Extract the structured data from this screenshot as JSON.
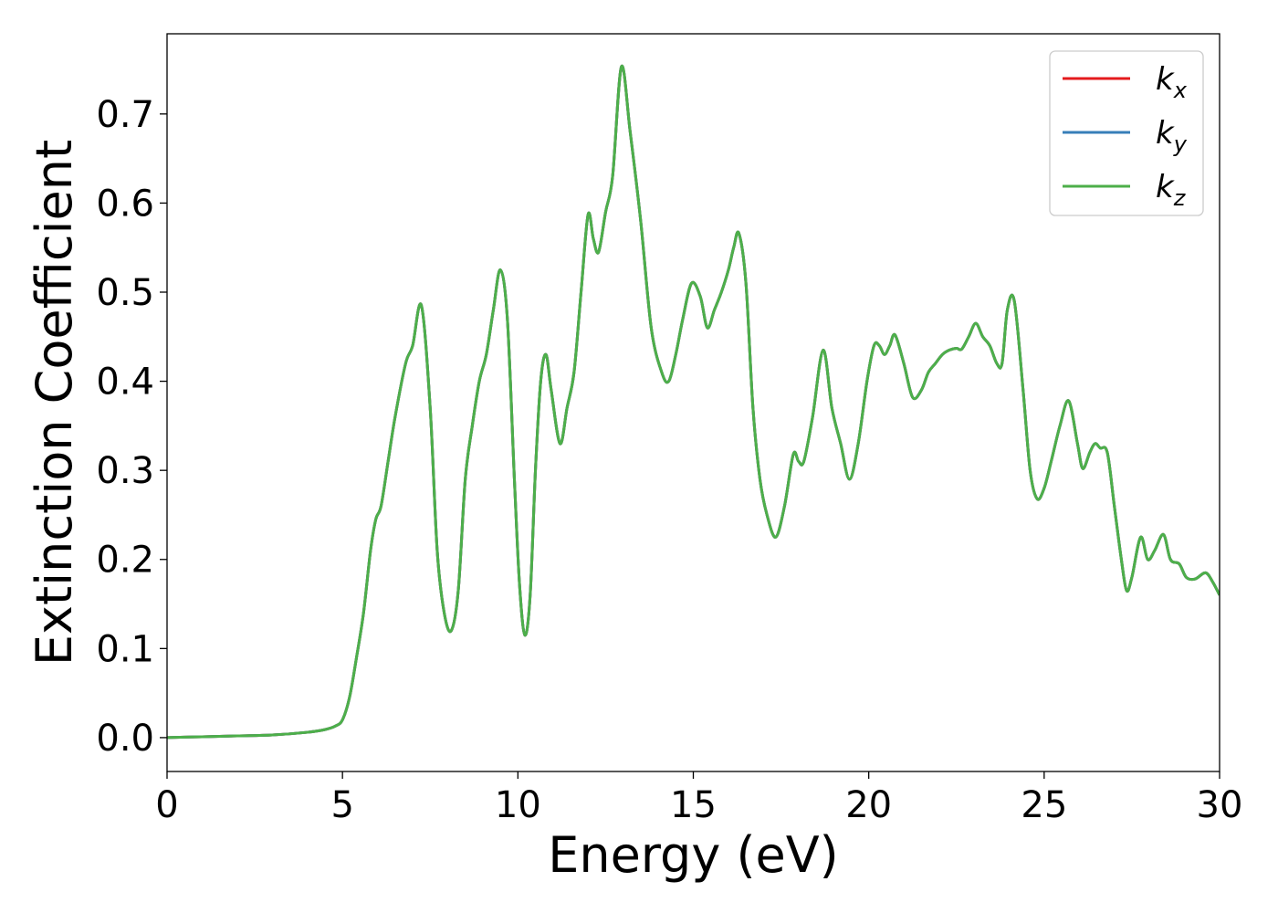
{
  "chart_data": {
    "type": "line",
    "title": "",
    "xlabel": "Energy (eV)",
    "ylabel": "Extinction Coefficient",
    "xlim": [
      0,
      30
    ],
    "ylim": [
      -0.038,
      0.79
    ],
    "grid": false,
    "legend_position": "top-right",
    "x_ticks": [
      0,
      5,
      10,
      15,
      20,
      25,
      30
    ],
    "x_tick_labels": [
      "0",
      "5",
      "10",
      "15",
      "20",
      "25",
      "30"
    ],
    "y_ticks": [
      0.0,
      0.1,
      0.2,
      0.3,
      0.4,
      0.5,
      0.6,
      0.7
    ],
    "y_tick_labels": [
      "0.0",
      "0.1",
      "0.2",
      "0.3",
      "0.4",
      "0.5",
      "0.6",
      "0.7"
    ],
    "x": [
      0,
      1,
      2,
      3,
      4,
      4.5,
      4.8,
      5.0,
      5.2,
      5.4,
      5.6,
      5.8,
      5.95,
      6.1,
      6.3,
      6.5,
      6.8,
      7.0,
      7.25,
      7.5,
      7.7,
      7.9,
      8.1,
      8.3,
      8.5,
      8.7,
      8.9,
      9.1,
      9.3,
      9.5,
      9.7,
      9.9,
      10.05,
      10.2,
      10.35,
      10.5,
      10.65,
      10.8,
      10.95,
      11.2,
      11.4,
      11.6,
      11.8,
      12.0,
      12.15,
      12.3,
      12.5,
      12.7,
      12.95,
      13.2,
      13.5,
      13.8,
      14.1,
      14.3,
      14.5,
      14.7,
      14.95,
      15.2,
      15.4,
      15.6,
      15.8,
      16.0,
      16.15,
      16.3,
      16.5,
      16.7,
      16.9,
      17.1,
      17.35,
      17.6,
      17.85,
      18.0,
      18.15,
      18.4,
      18.7,
      18.95,
      19.2,
      19.45,
      19.7,
      19.95,
      20.15,
      20.3,
      20.45,
      20.6,
      20.75,
      21.0,
      21.25,
      21.5,
      21.7,
      21.9,
      22.1,
      22.3,
      22.5,
      22.65,
      22.85,
      23.05,
      23.25,
      23.45,
      23.65,
      23.8,
      23.95,
      24.15,
      24.4,
      24.6,
      24.8,
      25.0,
      25.2,
      25.45,
      25.7,
      25.95,
      26.1,
      26.3,
      26.45,
      26.6,
      26.8,
      27.0,
      27.2,
      27.35,
      27.5,
      27.75,
      27.95,
      28.15,
      28.4,
      28.6,
      28.85,
      29.05,
      29.3,
      29.6,
      29.8,
      30.0
    ],
    "series": [
      {
        "name": "k_x",
        "color": "#e41a1c",
        "values": [
          0.0,
          0.001,
          0.002,
          0.003,
          0.006,
          0.009,
          0.013,
          0.02,
          0.045,
          0.09,
          0.14,
          0.21,
          0.245,
          0.26,
          0.31,
          0.36,
          0.42,
          0.44,
          0.485,
          0.37,
          0.21,
          0.14,
          0.12,
          0.165,
          0.29,
          0.35,
          0.4,
          0.43,
          0.48,
          0.525,
          0.47,
          0.29,
          0.17,
          0.115,
          0.16,
          0.3,
          0.4,
          0.43,
          0.39,
          0.33,
          0.37,
          0.41,
          0.5,
          0.587,
          0.56,
          0.545,
          0.59,
          0.63,
          0.753,
          0.68,
          0.58,
          0.46,
          0.41,
          0.4,
          0.43,
          0.47,
          0.51,
          0.495,
          0.46,
          0.48,
          0.5,
          0.525,
          0.55,
          0.566,
          0.51,
          0.37,
          0.29,
          0.25,
          0.225,
          0.26,
          0.318,
          0.31,
          0.31,
          0.36,
          0.435,
          0.37,
          0.33,
          0.29,
          0.33,
          0.4,
          0.44,
          0.44,
          0.43,
          0.44,
          0.452,
          0.42,
          0.382,
          0.39,
          0.41,
          0.42,
          0.43,
          0.435,
          0.437,
          0.436,
          0.45,
          0.465,
          0.45,
          0.44,
          0.42,
          0.42,
          0.48,
          0.49,
          0.39,
          0.3,
          0.268,
          0.28,
          0.31,
          0.35,
          0.378,
          0.33,
          0.302,
          0.32,
          0.33,
          0.325,
          0.32,
          0.26,
          0.2,
          0.165,
          0.18,
          0.225,
          0.2,
          0.21,
          0.228,
          0.2,
          0.195,
          0.18,
          0.178,
          0.185,
          0.175,
          0.16
        ]
      },
      {
        "name": "k_y",
        "color": "#377eb8",
        "values": [
          0.0,
          0.001,
          0.002,
          0.003,
          0.006,
          0.009,
          0.013,
          0.02,
          0.045,
          0.09,
          0.14,
          0.21,
          0.245,
          0.26,
          0.31,
          0.36,
          0.42,
          0.44,
          0.485,
          0.37,
          0.21,
          0.14,
          0.12,
          0.165,
          0.29,
          0.35,
          0.4,
          0.43,
          0.48,
          0.525,
          0.47,
          0.29,
          0.17,
          0.115,
          0.16,
          0.3,
          0.4,
          0.43,
          0.39,
          0.33,
          0.37,
          0.41,
          0.5,
          0.587,
          0.56,
          0.545,
          0.59,
          0.63,
          0.753,
          0.68,
          0.58,
          0.46,
          0.41,
          0.4,
          0.43,
          0.47,
          0.51,
          0.495,
          0.46,
          0.48,
          0.5,
          0.525,
          0.55,
          0.566,
          0.51,
          0.37,
          0.29,
          0.25,
          0.225,
          0.26,
          0.318,
          0.31,
          0.31,
          0.36,
          0.435,
          0.37,
          0.33,
          0.29,
          0.33,
          0.4,
          0.44,
          0.44,
          0.43,
          0.44,
          0.452,
          0.42,
          0.382,
          0.39,
          0.41,
          0.42,
          0.43,
          0.435,
          0.437,
          0.436,
          0.45,
          0.465,
          0.45,
          0.44,
          0.42,
          0.42,
          0.48,
          0.49,
          0.39,
          0.3,
          0.268,
          0.28,
          0.31,
          0.35,
          0.378,
          0.33,
          0.302,
          0.32,
          0.33,
          0.325,
          0.32,
          0.26,
          0.2,
          0.165,
          0.18,
          0.225,
          0.2,
          0.21,
          0.228,
          0.2,
          0.195,
          0.18,
          0.178,
          0.185,
          0.175,
          0.16
        ]
      },
      {
        "name": "k_z",
        "color": "#4daf4a",
        "values": [
          0.0,
          0.001,
          0.002,
          0.003,
          0.006,
          0.009,
          0.013,
          0.02,
          0.045,
          0.09,
          0.14,
          0.21,
          0.245,
          0.26,
          0.31,
          0.36,
          0.42,
          0.44,
          0.485,
          0.37,
          0.21,
          0.14,
          0.12,
          0.165,
          0.29,
          0.35,
          0.4,
          0.43,
          0.48,
          0.525,
          0.47,
          0.29,
          0.17,
          0.115,
          0.16,
          0.3,
          0.4,
          0.43,
          0.39,
          0.33,
          0.37,
          0.41,
          0.5,
          0.587,
          0.56,
          0.545,
          0.59,
          0.63,
          0.753,
          0.68,
          0.58,
          0.46,
          0.41,
          0.4,
          0.43,
          0.47,
          0.51,
          0.495,
          0.46,
          0.48,
          0.5,
          0.525,
          0.55,
          0.566,
          0.51,
          0.37,
          0.29,
          0.25,
          0.225,
          0.26,
          0.318,
          0.31,
          0.31,
          0.36,
          0.435,
          0.37,
          0.33,
          0.29,
          0.33,
          0.4,
          0.44,
          0.44,
          0.43,
          0.44,
          0.452,
          0.42,
          0.382,
          0.39,
          0.41,
          0.42,
          0.43,
          0.435,
          0.437,
          0.436,
          0.45,
          0.465,
          0.45,
          0.44,
          0.42,
          0.42,
          0.48,
          0.49,
          0.39,
          0.3,
          0.268,
          0.28,
          0.31,
          0.35,
          0.378,
          0.33,
          0.302,
          0.32,
          0.33,
          0.325,
          0.32,
          0.26,
          0.2,
          0.165,
          0.18,
          0.225,
          0.2,
          0.21,
          0.228,
          0.2,
          0.195,
          0.18,
          0.178,
          0.185,
          0.175,
          0.16
        ]
      }
    ],
    "legend": [
      {
        "base": "k",
        "sub": "x",
        "color": "#e41a1c"
      },
      {
        "base": "k",
        "sub": "y",
        "color": "#377eb8"
      },
      {
        "base": "k",
        "sub": "z",
        "color": "#4daf4a"
      }
    ]
  }
}
